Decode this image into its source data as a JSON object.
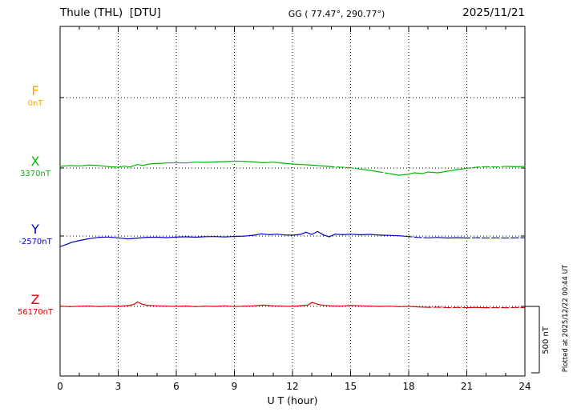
{
  "header": {
    "station": "Thule (THL)  [DTU]",
    "coords": "GG ( 77.47°, 290.77°)",
    "date": "2025/11/21"
  },
  "side_note": "Plotted at 2025/12/22 00:44 UT",
  "scale_bar_label": "500 nT",
  "chart_data": {
    "type": "line",
    "title": "Thule (THL) [DTU]",
    "xlabel": "U T (hour)",
    "xlim": [
      0,
      24
    ],
    "x_ticks": [
      0,
      3,
      6,
      9,
      12,
      15,
      18,
      21,
      24
    ],
    "grid": "dotted vertical lines every 3 h; dotted horizontal baseline per component",
    "scale_bar_nT": 500,
    "legend_position": "left-baseline-labels",
    "series": [
      {
        "name": "F",
        "baseline_label": "0nT",
        "baseline_nT": 0,
        "color": "#FFA500",
        "points": [],
        "dashed_ranges": []
      },
      {
        "name": "X",
        "baseline_label": "3370nT",
        "baseline_nT": 3370,
        "color": "#00BB00",
        "points": [
          [
            0,
            12
          ],
          [
            0.5,
            18
          ],
          [
            1,
            15
          ],
          [
            1.5,
            22
          ],
          [
            2,
            18
          ],
          [
            2.5,
            10
          ],
          [
            3,
            6
          ],
          [
            3.3,
            14
          ],
          [
            3.6,
            8
          ],
          [
            4,
            26
          ],
          [
            4.3,
            20
          ],
          [
            4.6,
            30
          ],
          [
            5,
            34
          ],
          [
            5.5,
            38
          ],
          [
            6,
            40
          ],
          [
            6.5,
            38
          ],
          [
            7,
            44
          ],
          [
            7.5,
            42
          ],
          [
            8,
            46
          ],
          [
            8.5,
            48
          ],
          [
            9,
            52
          ],
          [
            9.5,
            50
          ],
          [
            10,
            46
          ],
          [
            10.5,
            40
          ],
          [
            11,
            44
          ],
          [
            11.5,
            36
          ],
          [
            12,
            30
          ],
          [
            12.5,
            26
          ],
          [
            13,
            22
          ],
          [
            13.5,
            16
          ],
          [
            14,
            10
          ],
          [
            14.5,
            6
          ],
          [
            15,
            2
          ],
          [
            15.5,
            -8
          ],
          [
            16,
            -18
          ],
          [
            16.5,
            -30
          ],
          [
            17,
            -42
          ],
          [
            17.5,
            -55
          ],
          [
            18,
            -46
          ],
          [
            18.3,
            -36
          ],
          [
            18.7,
            -42
          ],
          [
            19,
            -30
          ],
          [
            19.5,
            -36
          ],
          [
            20,
            -24
          ],
          [
            20.5,
            -12
          ],
          [
            21,
            -2
          ],
          [
            21.5,
            6
          ],
          [
            22,
            10
          ],
          [
            22.5,
            8
          ],
          [
            23,
            12
          ],
          [
            23.5,
            10
          ],
          [
            24,
            12
          ]
        ],
        "dashed_ranges": [
          [
            13.8,
            15.3
          ],
          [
            16.4,
            17.2
          ],
          [
            21.2,
            23.0
          ]
        ]
      },
      {
        "name": "Y",
        "baseline_label": "-2570nT",
        "baseline_nT": -2570,
        "color": "#0000CC",
        "points": [
          [
            0,
            -80
          ],
          [
            0.3,
            -65
          ],
          [
            0.6,
            -48
          ],
          [
            1,
            -34
          ],
          [
            1.5,
            -20
          ],
          [
            2,
            -10
          ],
          [
            2.5,
            -8
          ],
          [
            3,
            -14
          ],
          [
            3.5,
            -22
          ],
          [
            4,
            -16
          ],
          [
            4.5,
            -10
          ],
          [
            5,
            -9
          ],
          [
            5.5,
            -13
          ],
          [
            6,
            -8
          ],
          [
            6.5,
            -6
          ],
          [
            7,
            -9
          ],
          [
            7.5,
            -5
          ],
          [
            8,
            -4
          ],
          [
            8.5,
            -7
          ],
          [
            9,
            -3
          ],
          [
            9.5,
            -1
          ],
          [
            10,
            6
          ],
          [
            10.4,
            16
          ],
          [
            10.8,
            10
          ],
          [
            11.2,
            14
          ],
          [
            11.6,
            8
          ],
          [
            12,
            6
          ],
          [
            12.4,
            12
          ],
          [
            12.7,
            28
          ],
          [
            13,
            12
          ],
          [
            13.3,
            34
          ],
          [
            13.6,
            8
          ],
          [
            13.9,
            -6
          ],
          [
            14.2,
            14
          ],
          [
            14.6,
            10
          ],
          [
            15,
            14
          ],
          [
            15.5,
            9
          ],
          [
            16,
            12
          ],
          [
            16.5,
            7
          ],
          [
            17,
            5
          ],
          [
            17.5,
            2
          ],
          [
            18,
            -4
          ],
          [
            18.5,
            -11
          ],
          [
            19,
            -14
          ],
          [
            19.5,
            -11
          ],
          [
            20,
            -15
          ],
          [
            20.5,
            -13
          ],
          [
            21,
            -15
          ],
          [
            21.5,
            -13
          ],
          [
            22,
            -15
          ],
          [
            22.5,
            -14
          ],
          [
            23,
            -15
          ],
          [
            23.5,
            -14
          ],
          [
            24,
            -13
          ]
        ],
        "dashed_ranges": [
          [
            18.2,
            19.2
          ],
          [
            21.0,
            24
          ]
        ]
      },
      {
        "name": "Z",
        "baseline_label": "56170nT",
        "baseline_nT": 56170,
        "color": "#DD0000",
        "points": [
          [
            0,
            2
          ],
          [
            0.5,
            -2
          ],
          [
            1,
            1
          ],
          [
            1.5,
            3
          ],
          [
            2,
            -1
          ],
          [
            2.5,
            2
          ],
          [
            3,
            0
          ],
          [
            3.5,
            6
          ],
          [
            3.8,
            14
          ],
          [
            4,
            34
          ],
          [
            4.2,
            18
          ],
          [
            4.5,
            8
          ],
          [
            5,
            4
          ],
          [
            5.5,
            2
          ],
          [
            6,
            0
          ],
          [
            6.5,
            3
          ],
          [
            7,
            -2
          ],
          [
            7.5,
            2
          ],
          [
            8,
            0
          ],
          [
            8.5,
            4
          ],
          [
            9,
            -1
          ],
          [
            9.5,
            2
          ],
          [
            10,
            4
          ],
          [
            10.5,
            10
          ],
          [
            11,
            4
          ],
          [
            11.5,
            2
          ],
          [
            12,
            0
          ],
          [
            12.5,
            6
          ],
          [
            12.8,
            10
          ],
          [
            13,
            30
          ],
          [
            13.3,
            16
          ],
          [
            13.6,
            8
          ],
          [
            14,
            4
          ],
          [
            14.5,
            2
          ],
          [
            15,
            8
          ],
          [
            15.5,
            4
          ],
          [
            16,
            2
          ],
          [
            16.5,
            0
          ],
          [
            17,
            2
          ],
          [
            17.5,
            -2
          ],
          [
            18,
            0
          ],
          [
            18.5,
            -4
          ],
          [
            19,
            -7
          ],
          [
            19.5,
            -6
          ],
          [
            20,
            -9
          ],
          [
            20.5,
            -8
          ],
          [
            21,
            -9
          ],
          [
            21.5,
            -8
          ],
          [
            22,
            -10
          ],
          [
            22.5,
            -9
          ],
          [
            23,
            -10
          ],
          [
            23.5,
            -8
          ],
          [
            24,
            -9
          ]
        ],
        "dashed_ranges": [
          [
            19.2,
            21.0
          ],
          [
            21.8,
            24
          ]
        ]
      }
    ]
  }
}
